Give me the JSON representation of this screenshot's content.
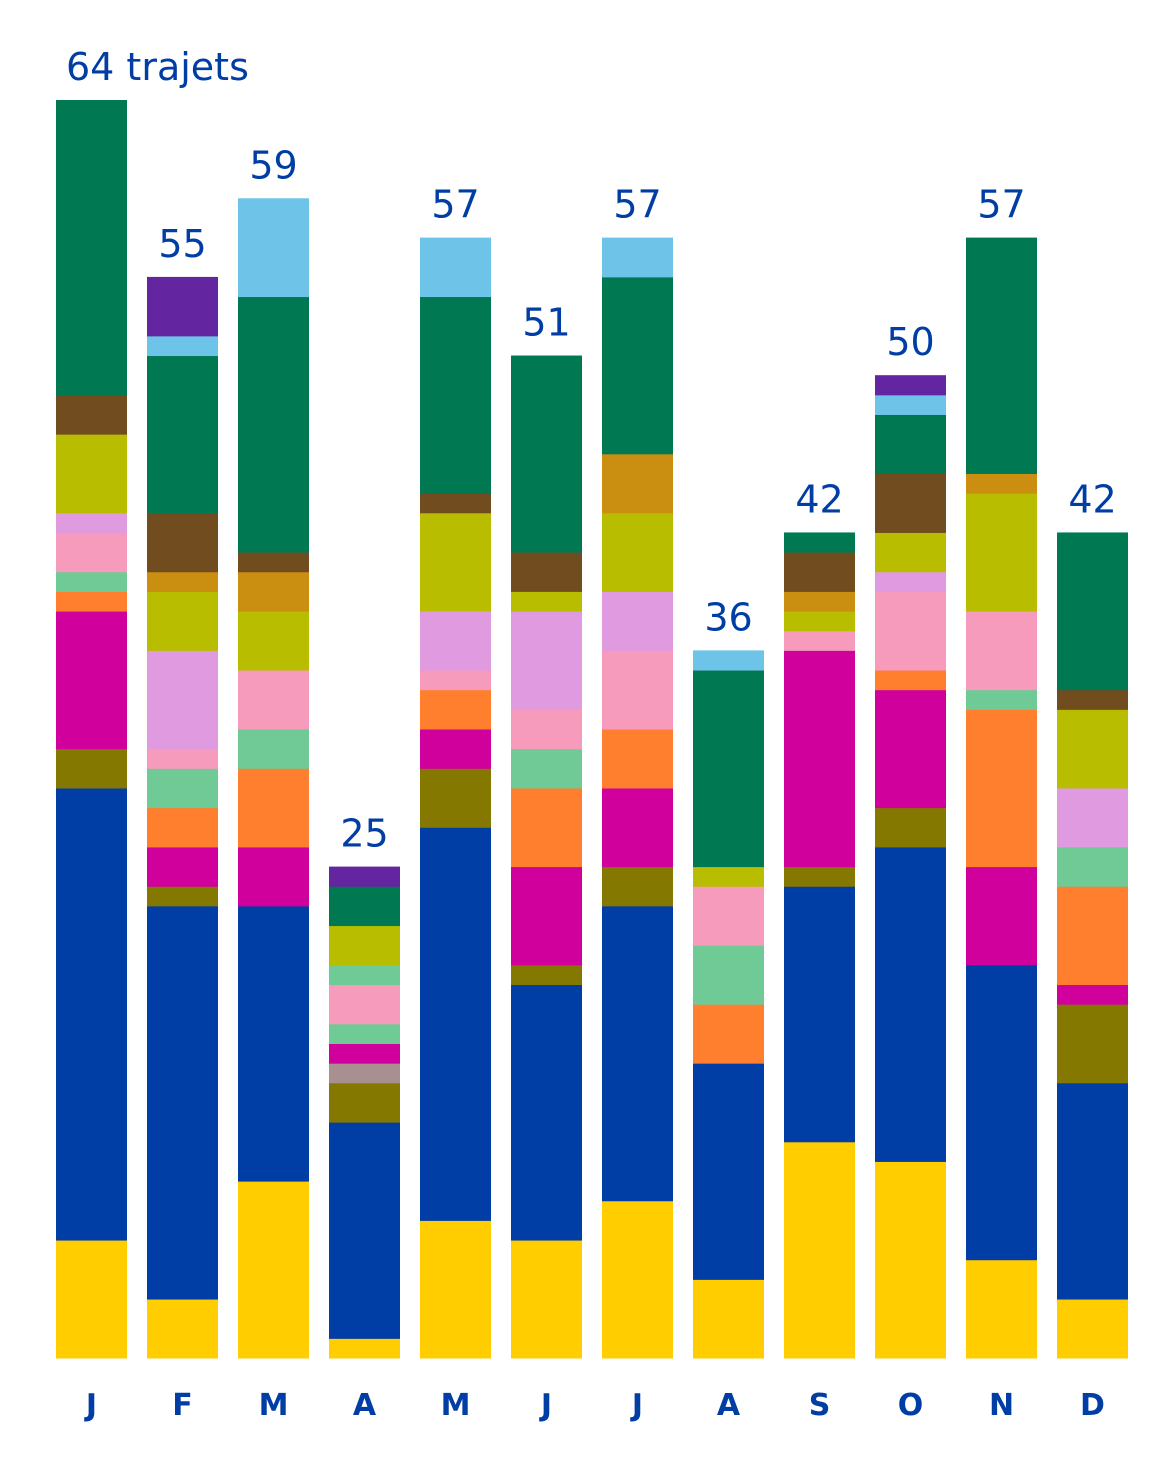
{
  "chart_data": {
    "type": "bar",
    "stacked": true,
    "title": "",
    "xlabel": "",
    "ylabel": "",
    "unit_label": "trajets",
    "categories": [
      "J",
      "F",
      "M",
      "A",
      "M",
      "J",
      "J",
      "A",
      "S",
      "O",
      "N",
      "D"
    ],
    "totals": [
      64,
      55,
      59,
      25,
      57,
      51,
      57,
      36,
      42,
      50,
      57,
      42
    ],
    "total_labels": [
      "64 trajets",
      "55",
      "59",
      "25",
      "57",
      "51",
      "57",
      "36",
      "42",
      "50",
      "57",
      "42"
    ],
    "ylim": [
      0,
      64
    ],
    "grid": false,
    "colors": {
      "yellow": "#FFCD00",
      "blue": "#003DA5",
      "olive": "#857800",
      "taupe": "#A89090",
      "magenta": "#D0009C",
      "orange": "#FF7F2E",
      "mint": "#6FCA96",
      "pink": "#F79BBC",
      "lilac": "#E09AE0",
      "yellowgreen": "#B8BD00",
      "gold": "#CA8E10",
      "brown": "#714C1E",
      "green": "#007852",
      "lightblue": "#6EC3E8",
      "purple": "#6426A0"
    },
    "stacks": [
      [
        [
          "yellow",
          6
        ],
        [
          "blue",
          23
        ],
        [
          "olive",
          2
        ],
        [
          "magenta",
          7
        ],
        [
          "orange",
          1
        ],
        [
          "mint",
          1
        ],
        [
          "pink",
          2
        ],
        [
          "lilac",
          1
        ],
        [
          "yellowgreen",
          4
        ],
        [
          "brown",
          2
        ],
        [
          "green",
          15
        ]
      ],
      [
        [
          "yellow",
          3
        ],
        [
          "blue",
          20
        ],
        [
          "olive",
          1
        ],
        [
          "magenta",
          2
        ],
        [
          "orange",
          2
        ],
        [
          "mint",
          2
        ],
        [
          "pink",
          1
        ],
        [
          "lilac",
          5
        ],
        [
          "yellowgreen",
          3
        ],
        [
          "gold",
          1
        ],
        [
          "brown",
          3
        ],
        [
          "green",
          8
        ],
        [
          "lightblue",
          1
        ],
        [
          "purple",
          3
        ]
      ],
      [
        [
          "yellow",
          9
        ],
        [
          "blue",
          14
        ],
        [
          "magenta",
          3
        ],
        [
          "orange",
          4
        ],
        [
          "mint",
          2
        ],
        [
          "pink",
          3
        ],
        [
          "yellowgreen",
          3
        ],
        [
          "gold",
          2
        ],
        [
          "brown",
          1
        ],
        [
          "green",
          13
        ],
        [
          "lightblue",
          5
        ]
      ],
      [
        [
          "yellow",
          1
        ],
        [
          "blue",
          11
        ],
        [
          "olive",
          2
        ],
        [
          "taupe",
          1
        ],
        [
          "magenta",
          1
        ],
        [
          "mint",
          1
        ],
        [
          "pink",
          2
        ],
        [
          "mint",
          1
        ],
        [
          "yellowgreen",
          2
        ],
        [
          "green",
          2
        ],
        [
          "purple",
          1
        ]
      ],
      [
        [
          "yellow",
          7
        ],
        [
          "blue",
          20
        ],
        [
          "olive",
          3
        ],
        [
          "magenta",
          2
        ],
        [
          "orange",
          2
        ],
        [
          "pink",
          1
        ],
        [
          "lilac",
          3
        ],
        [
          "yellowgreen",
          5
        ],
        [
          "brown",
          1
        ],
        [
          "green",
          10
        ],
        [
          "lightblue",
          3
        ]
      ],
      [
        [
          "yellow",
          6
        ],
        [
          "blue",
          13
        ],
        [
          "olive",
          1
        ],
        [
          "magenta",
          5
        ],
        [
          "orange",
          4
        ],
        [
          "mint",
          2
        ],
        [
          "pink",
          2
        ],
        [
          "lilac",
          5
        ],
        [
          "yellowgreen",
          1
        ],
        [
          "brown",
          2
        ],
        [
          "green",
          10
        ]
      ],
      [
        [
          "yellow",
          8
        ],
        [
          "blue",
          15
        ],
        [
          "olive",
          2
        ],
        [
          "magenta",
          4
        ],
        [
          "orange",
          3
        ],
        [
          "pink",
          4
        ],
        [
          "lilac",
          3
        ],
        [
          "yellowgreen",
          4
        ],
        [
          "gold",
          3
        ],
        [
          "green",
          9
        ],
        [
          "lightblue",
          2
        ]
      ],
      [
        [
          "yellow",
          4
        ],
        [
          "blue",
          11
        ],
        [
          "orange",
          3
        ],
        [
          "mint",
          3
        ],
        [
          "pink",
          3
        ],
        [
          "yellowgreen",
          1
        ],
        [
          "green",
          10
        ],
        [
          "lightblue",
          1
        ]
      ],
      [
        [
          "yellow",
          11
        ],
        [
          "blue",
          13
        ],
        [
          "olive",
          1
        ],
        [
          "magenta",
          11
        ],
        [
          "pink",
          1
        ],
        [
          "yellowgreen",
          1
        ],
        [
          "gold",
          1
        ],
        [
          "brown",
          2
        ],
        [
          "green",
          1
        ]
      ],
      [
        [
          "yellow",
          10
        ],
        [
          "blue",
          16
        ],
        [
          "olive",
          2
        ],
        [
          "magenta",
          6
        ],
        [
          "orange",
          1
        ],
        [
          "pink",
          4
        ],
        [
          "lilac",
          1
        ],
        [
          "yellowgreen",
          2
        ],
        [
          "brown",
          3
        ],
        [
          "green",
          3
        ],
        [
          "lightblue",
          1
        ],
        [
          "purple",
          1
        ]
      ],
      [
        [
          "yellow",
          5
        ],
        [
          "blue",
          15
        ],
        [
          "magenta",
          5
        ],
        [
          "orange",
          8
        ],
        [
          "mint",
          1
        ],
        [
          "pink",
          4
        ],
        [
          "yellowgreen",
          6
        ],
        [
          "gold",
          1
        ],
        [
          "green",
          12
        ]
      ],
      [
        [
          "yellow",
          3
        ],
        [
          "blue",
          11
        ],
        [
          "olive",
          4
        ],
        [
          "magenta",
          1
        ],
        [
          "orange",
          5
        ],
        [
          "mint",
          2
        ],
        [
          "lilac",
          3
        ],
        [
          "yellowgreen",
          4
        ],
        [
          "brown",
          1
        ],
        [
          "green",
          8
        ]
      ]
    ]
  }
}
